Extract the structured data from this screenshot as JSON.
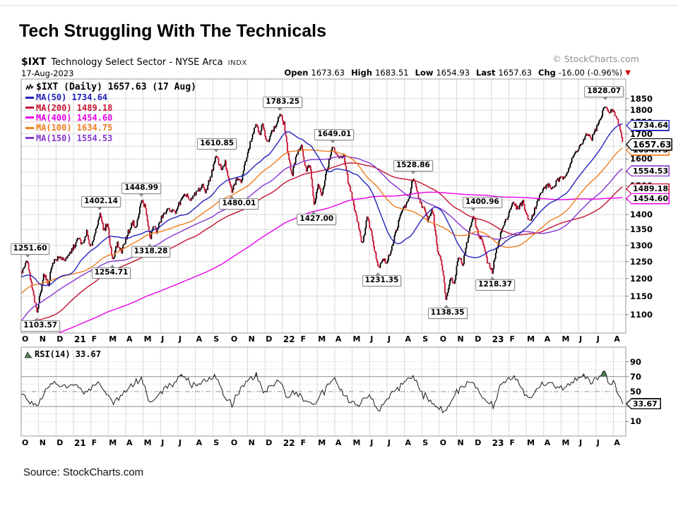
{
  "title": "Tech Struggling With The Technicals",
  "source": "Source: StockCharts.com",
  "watermark": "© StockCharts.com",
  "header": {
    "symbol": "$IXT",
    "name": "Technology Select Sector - NYSE Arca",
    "exchange": "INDX",
    "date": "17-Aug-2023",
    "quote": [
      {
        "label": "Open",
        "value": "1673.63"
      },
      {
        "label": "High",
        "value": "1683.51"
      },
      {
        "label": "Low",
        "value": "1654.93"
      },
      {
        "label": "Last",
        "value": "1657.63"
      },
      {
        "label": "Chg",
        "value": "-16.00 (-0.96%)"
      }
    ],
    "change_direction": "down"
  },
  "legend": {
    "main": "$IXT (Daily) 1657.63 (17 Aug)",
    "mas": [
      {
        "label": "MA(50)",
        "value": "1734.64",
        "color": "#2323bb"
      },
      {
        "label": "MA(200)",
        "value": "1489.18",
        "color": "#c41230"
      },
      {
        "label": "MA(400)",
        "value": "1454.60",
        "color": "#e800e8"
      },
      {
        "label": "MA(100)",
        "value": "1634.75",
        "color": "#ef7d1f"
      },
      {
        "label": "MA(150)",
        "value": "1554.53",
        "color": "#8436cf"
      }
    ]
  },
  "rsi_label": "RSI(14) 33.67",
  "chart_data": {
    "type": "candlestick",
    "symbol": "$IXT",
    "log_scale": true,
    "ylim": [
      1100,
      1850
    ],
    "price_ticks": [
      1850,
      1800,
      1750,
      1700,
      1650,
      1600,
      1550,
      1500,
      1450,
      1400,
      1350,
      1300,
      1250,
      1200,
      1150,
      1100
    ],
    "month_labels": [
      "O",
      "N",
      "D",
      "21",
      "F",
      "M",
      "A",
      "M",
      "J",
      "J",
      "A",
      "S",
      "O",
      "N",
      "D",
      "22",
      "F",
      "M",
      "A",
      "M",
      "J",
      "J",
      "A",
      "S",
      "O",
      "N",
      "D",
      "23",
      "F",
      "M",
      "A",
      "M",
      "J",
      "J",
      "A"
    ],
    "year_indices": [
      3,
      15,
      27
    ],
    "last_price": 1657.63,
    "moving_averages": [
      {
        "period": 200,
        "value": 1489.18,
        "color": "#c41230"
      },
      {
        "period": 150,
        "value": 1554.53,
        "color": "#8436cf"
      },
      {
        "period": 400,
        "value": 1454.6,
        "color": "#e800e8"
      },
      {
        "period": 100,
        "value": 1634.75,
        "color": "#ef7d1f"
      },
      {
        "period": 50,
        "value": 1734.64,
        "color": "#2323bb"
      }
    ],
    "price_flags": [
      {
        "label": "1734.64",
        "value": 1734.64,
        "color": "#2323bb",
        "last": false
      },
      {
        "label": "1634.75",
        "value": 1634.75,
        "color": "#ef7d1f",
        "last": false
      },
      {
        "label": "1554.53",
        "value": 1554.53,
        "color": "#8436cf",
        "last": false
      },
      {
        "label": "1489.18",
        "value": 1489.18,
        "color": "#c41230",
        "last": false
      },
      {
        "label": "1454.60",
        "value": 1454.6,
        "color": "#e800e8",
        "last": false
      },
      {
        "label": "1657.63",
        "value": 1657.63,
        "color": "#000000",
        "last": true
      }
    ],
    "annotations": [
      {
        "t": 0.35,
        "price": 1251.6,
        "label": "1251.60",
        "type": "peak",
        "dx": 4
      },
      {
        "t": 0.9,
        "price": 1103.57,
        "label": "1103.57",
        "type": "low",
        "dx": 5
      },
      {
        "t": 4.5,
        "price": 1402.14,
        "label": "1402.14",
        "type": "peak",
        "dx": 2
      },
      {
        "t": 5.25,
        "price": 1254.71,
        "label": "1254.71",
        "type": "low",
        "dx": -2
      },
      {
        "t": 6.9,
        "price": 1448.99,
        "label": "1448.99",
        "type": "peak",
        "dx": 0
      },
      {
        "t": 7.4,
        "price": 1318.28,
        "label": "1318.28",
        "type": "low",
        "dx": 1
      },
      {
        "t": 11.2,
        "price": 1610.85,
        "label": "1610.85",
        "type": "peak",
        "dx": 1
      },
      {
        "t": 12.1,
        "price": 1480.01,
        "label": "1480.01",
        "type": "low",
        "dx": 10
      },
      {
        "t": 14.85,
        "price": 1783.25,
        "label": "1783.25",
        "type": "peak",
        "dx": 4
      },
      {
        "t": 16.8,
        "price": 1427.0,
        "label": "1427.00",
        "type": "low",
        "dx": 4
      },
      {
        "t": 17.9,
        "price": 1649.01,
        "label": "1649.01",
        "type": "peak",
        "dx": 2
      },
      {
        "t": 20.5,
        "price": 1231.35,
        "label": "1231.35",
        "type": "low",
        "dx": 5
      },
      {
        "t": 22.5,
        "price": 1528.86,
        "label": "1528.86",
        "type": "peak",
        "dx": 0
      },
      {
        "t": 24.4,
        "price": 1138.35,
        "label": "1138.35",
        "type": "low",
        "dx": 2
      },
      {
        "t": 25.95,
        "price": 1400.96,
        "label": "1400.96",
        "type": "peak",
        "dx": 13
      },
      {
        "t": 27.05,
        "price": 1218.37,
        "label": "1218.37",
        "type": "low",
        "dx": 4
      },
      {
        "t": 33.55,
        "price": 1828.07,
        "label": "1828.07",
        "type": "peak",
        "dx": -2
      }
    ],
    "prehistory_anchors": [
      [
        -24,
        800
      ],
      [
        -20,
        870
      ],
      [
        -16,
        940
      ],
      [
        -12,
        990
      ],
      [
        -9,
        1075
      ],
      [
        -7.6,
        1060
      ],
      [
        -7,
        800
      ],
      [
        -6,
        950
      ],
      [
        -4,
        1080
      ],
      [
        -2.5,
        1180
      ],
      [
        -1.4,
        1268
      ],
      [
        -0.6,
        1135
      ],
      [
        -0.15,
        1190
      ]
    ],
    "price_anchors": [
      [
        0,
        1215
      ],
      [
        0.35,
        1251.6
      ],
      [
        0.55,
        1190
      ],
      [
        0.9,
        1103.57
      ],
      [
        1.3,
        1215
      ],
      [
        1.55,
        1180
      ],
      [
        1.8,
        1250
      ],
      [
        2.2,
        1262
      ],
      [
        2.6,
        1255
      ],
      [
        2.95,
        1290
      ],
      [
        3.3,
        1322
      ],
      [
        3.55,
        1300
      ],
      [
        3.75,
        1345
      ],
      [
        3.95,
        1290
      ],
      [
        4.2,
        1330
      ],
      [
        4.5,
        1402.14
      ],
      [
        4.75,
        1345
      ],
      [
        4.95,
        1375
      ],
      [
        5.1,
        1300
      ],
      [
        5.25,
        1254.71
      ],
      [
        5.5,
        1305
      ],
      [
        5.75,
        1280
      ],
      [
        6.1,
        1335
      ],
      [
        6.4,
        1375
      ],
      [
        6.6,
        1355
      ],
      [
        6.9,
        1448.99
      ],
      [
        7.1,
        1430
      ],
      [
        7.4,
        1318.28
      ],
      [
        7.6,
        1370
      ],
      [
        7.75,
        1340
      ],
      [
        8.1,
        1395
      ],
      [
        8.5,
        1420
      ],
      [
        8.8,
        1405
      ],
      [
        9.2,
        1450
      ],
      [
        9.5,
        1470
      ],
      [
        9.7,
        1445
      ],
      [
        10.1,
        1480
      ],
      [
        10.4,
        1500
      ],
      [
        10.6,
        1480
      ],
      [
        10.9,
        1540
      ],
      [
        11.2,
        1610.85
      ],
      [
        11.5,
        1560
      ],
      [
        11.7,
        1590
      ],
      [
        11.9,
        1520
      ],
      [
        12.1,
        1480.01
      ],
      [
        12.4,
        1530
      ],
      [
        12.6,
        1510
      ],
      [
        12.9,
        1600
      ],
      [
        13.2,
        1680
      ],
      [
        13.5,
        1745
      ],
      [
        13.7,
        1700
      ],
      [
        13.85,
        1740
      ],
      [
        14.1,
        1660
      ],
      [
        14.3,
        1700
      ],
      [
        14.6,
        1730
      ],
      [
        14.85,
        1783.25
      ],
      [
        15.1,
        1740
      ],
      [
        15.35,
        1600
      ],
      [
        15.55,
        1540
      ],
      [
        15.8,
        1620
      ],
      [
        16.1,
        1645
      ],
      [
        16.35,
        1560
      ],
      [
        16.6,
        1580
      ],
      [
        16.8,
        1427
      ],
      [
        17.05,
        1505
      ],
      [
        17.25,
        1460
      ],
      [
        17.55,
        1560
      ],
      [
        17.9,
        1649.01
      ],
      [
        18.2,
        1600
      ],
      [
        18.5,
        1620
      ],
      [
        18.75,
        1520
      ],
      [
        19,
        1460
      ],
      [
        19.3,
        1380
      ],
      [
        19.6,
        1298
      ],
      [
        19.85,
        1395
      ],
      [
        20.1,
        1340
      ],
      [
        20.5,
        1231.35
      ],
      [
        20.75,
        1260
      ],
      [
        21,
        1245
      ],
      [
        21.3,
        1300
      ],
      [
        21.6,
        1360
      ],
      [
        21.9,
        1420
      ],
      [
        22.2,
        1440
      ],
      [
        22.5,
        1528.86
      ],
      [
        22.8,
        1460
      ],
      [
        23.1,
        1420
      ],
      [
        23.35,
        1380
      ],
      [
        23.6,
        1420
      ],
      [
        23.9,
        1285
      ],
      [
        24.1,
        1260
      ],
      [
        24.4,
        1138.35
      ],
      [
        24.65,
        1210
      ],
      [
        24.85,
        1180
      ],
      [
        25.1,
        1270
      ],
      [
        25.35,
        1240
      ],
      [
        25.6,
        1310
      ],
      [
        25.95,
        1400.96
      ],
      [
        26.2,
        1340
      ],
      [
        26.5,
        1310
      ],
      [
        26.75,
        1250
      ],
      [
        27.05,
        1218.37
      ],
      [
        27.3,
        1290
      ],
      [
        27.6,
        1350
      ],
      [
        27.9,
        1390
      ],
      [
        28.2,
        1440
      ],
      [
        28.5,
        1420
      ],
      [
        28.8,
        1445
      ],
      [
        29.1,
        1380
      ],
      [
        29.35,
        1395
      ],
      [
        29.6,
        1440
      ],
      [
        29.9,
        1480
      ],
      [
        30.2,
        1505
      ],
      [
        30.5,
        1490
      ],
      [
        30.8,
        1520
      ],
      [
        31.1,
        1530
      ],
      [
        31.4,
        1560
      ],
      [
        31.7,
        1610
      ],
      [
        31.95,
        1640
      ],
      [
        32.2,
        1660
      ],
      [
        32.5,
        1700
      ],
      [
        32.75,
        1680
      ],
      [
        33,
        1720
      ],
      [
        33.25,
        1760
      ],
      [
        33.55,
        1828.07
      ],
      [
        33.75,
        1780
      ],
      [
        33.95,
        1800
      ],
      [
        34.15,
        1770
      ],
      [
        34.35,
        1735
      ],
      [
        34.55,
        1657.63
      ]
    ],
    "rsi": {
      "period": 14,
      "value": 33.67,
      "ticks": [
        90,
        70,
        50,
        30,
        10
      ],
      "bands": {
        "upper": 70,
        "mid": 50,
        "lower": 30
      },
      "line_color": "#1a1a1a",
      "overbought_fill": "#4e7d50",
      "anchors": [
        [
          0,
          50
        ],
        [
          0.4,
          38
        ],
        [
          0.9,
          30
        ],
        [
          1.4,
          52
        ],
        [
          2,
          60
        ],
        [
          2.6,
          55
        ],
        [
          3.1,
          62
        ],
        [
          3.6,
          48
        ],
        [
          4.2,
          58
        ],
        [
          4.5,
          65
        ],
        [
          4.9,
          45
        ],
        [
          5.25,
          33
        ],
        [
          5.8,
          46
        ],
        [
          6.4,
          60
        ],
        [
          6.9,
          66
        ],
        [
          7.4,
          36
        ],
        [
          7.8,
          48
        ],
        [
          8.3,
          55
        ],
        [
          8.9,
          62
        ],
        [
          9.4,
          72
        ],
        [
          9.8,
          58
        ],
        [
          10.3,
          62
        ],
        [
          10.7,
          66
        ],
        [
          11.2,
          70
        ],
        [
          11.6,
          44
        ],
        [
          12.1,
          34
        ],
        [
          12.6,
          52
        ],
        [
          13.1,
          66
        ],
        [
          13.5,
          74
        ],
        [
          13.9,
          48
        ],
        [
          14.3,
          56
        ],
        [
          14.85,
          66
        ],
        [
          15.2,
          42
        ],
        [
          15.6,
          48
        ],
        [
          16.1,
          44
        ],
        [
          16.8,
          29
        ],
        [
          17.3,
          48
        ],
        [
          17.9,
          67
        ],
        [
          18.4,
          52
        ],
        [
          18.9,
          36
        ],
        [
          19.4,
          30
        ],
        [
          19.85,
          48
        ],
        [
          20.5,
          26
        ],
        [
          21.1,
          42
        ],
        [
          21.6,
          54
        ],
        [
          22,
          62
        ],
        [
          22.5,
          71
        ],
        [
          23,
          48
        ],
        [
          23.5,
          38
        ],
        [
          23.9,
          28
        ],
        [
          24.4,
          24
        ],
        [
          24.9,
          46
        ],
        [
          25.4,
          56
        ],
        [
          25.95,
          66
        ],
        [
          26.4,
          44
        ],
        [
          26.9,
          33
        ],
        [
          27.1,
          31
        ],
        [
          27.5,
          56
        ],
        [
          27.9,
          64
        ],
        [
          28.3,
          71
        ],
        [
          28.8,
          52
        ],
        [
          29.2,
          40
        ],
        [
          29.6,
          52
        ],
        [
          29.9,
          60
        ],
        [
          30.3,
          62
        ],
        [
          30.7,
          52
        ],
        [
          31.1,
          56
        ],
        [
          31.5,
          60
        ],
        [
          31.9,
          66
        ],
        [
          32.3,
          72
        ],
        [
          32.7,
          62
        ],
        [
          33,
          68
        ],
        [
          33.3,
          73
        ],
        [
          33.55,
          74
        ],
        [
          33.8,
          58
        ],
        [
          34,
          62
        ],
        [
          34.2,
          50
        ],
        [
          34.4,
          42
        ],
        [
          34.55,
          33.67
        ]
      ]
    },
    "candle_colors": {
      "up": "#000000",
      "down": "#c81232"
    }
  }
}
